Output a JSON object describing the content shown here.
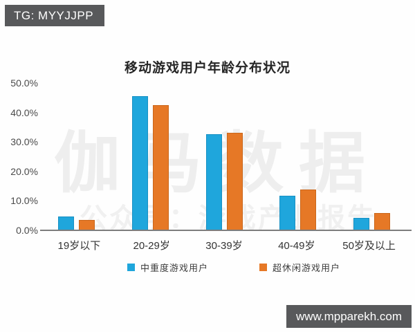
{
  "badges": {
    "top_left": "TG: MYYJJPP",
    "bottom_right": "www.mpparekh.com"
  },
  "watermark": {
    "line1": "伽马数据",
    "line2": "公众号：游戏产业报告"
  },
  "colors": {
    "series1": "#1fa6dc",
    "series2": "#e67826",
    "badge_bg": "#58595b",
    "axis": "#7d7d7d",
    "watermark": "#eeeeee"
  },
  "chart_data": {
    "type": "bar",
    "title": "移动游戏用户年龄分布状况",
    "categories": [
      "19岁以下",
      "20-29岁",
      "30-39岁",
      "40-49岁",
      "50岁及以上"
    ],
    "series": [
      {
        "name": "中重度游戏用户",
        "color": "#1fa6dc",
        "values": [
          4.7,
          45.5,
          32.6,
          11.7,
          4.2
        ]
      },
      {
        "name": "超休闲游戏用户",
        "color": "#e67826",
        "values": [
          3.5,
          42.5,
          33.1,
          13.8,
          5.9
        ]
      }
    ],
    "yticks": [
      "50.0%",
      "40.0%",
      "30.0%",
      "20.0%",
      "10.0%",
      "0.0%"
    ],
    "ylim": [
      0,
      50
    ],
    "xlabel": "",
    "ylabel": "",
    "grid": false,
    "legend_position": "bottom"
  }
}
